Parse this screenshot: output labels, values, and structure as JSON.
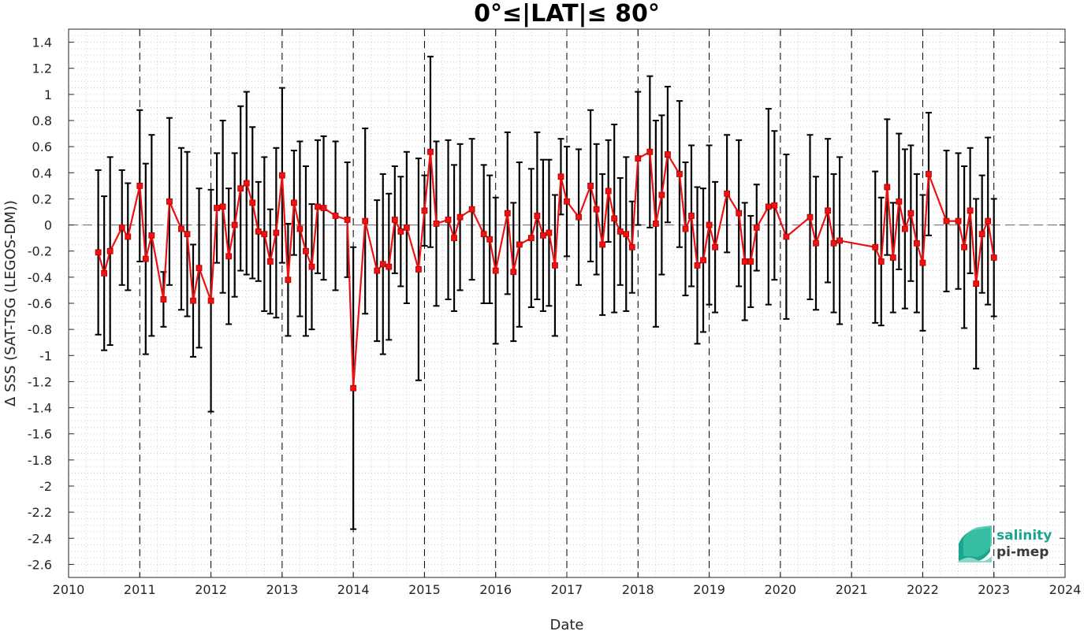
{
  "chart_data": {
    "type": "line",
    "title": "0°≤|LAT|≤ 80°",
    "xlabel": "Date",
    "ylabel": "Δ SSS (SAT-TSG (LEGOS-DM))",
    "xlim": [
      2010,
      2024
    ],
    "ylim": [
      -2.7,
      1.5
    ],
    "x_ticks": [
      "2010",
      "2011",
      "2012",
      "2013",
      "2014",
      "2015",
      "2016",
      "2017",
      "2018",
      "2019",
      "2020",
      "2021",
      "2022",
      "2023",
      "2024"
    ],
    "y_ticks": [
      "-2.6",
      "-2.4",
      "-2.2",
      "-2",
      "-1.8",
      "-1.6",
      "-1.4",
      "-1.2",
      "-1",
      "-0.8",
      "-0.6",
      "-0.4",
      "-0.2",
      "0",
      "0.2",
      "0.4",
      "0.6",
      "0.8",
      "1",
      "1.2",
      "1.4"
    ],
    "grid": true,
    "year_dashed_lines": true,
    "zero_line": true,
    "series": [
      {
        "color": "#ee1111",
        "errorbar_color": "#000000",
        "points": [
          {
            "x": "2010-06",
            "y": -0.21,
            "err": 0.63
          },
          {
            "x": "2010-07",
            "y": -0.37,
            "err": 0.59
          },
          {
            "x": "2010-08",
            "y": -0.2,
            "err": 0.72
          },
          {
            "x": "2010-10",
            "y": -0.02,
            "err": 0.44
          },
          {
            "x": "2010-11",
            "y": -0.09,
            "err": 0.41
          },
          {
            "x": "2011-01",
            "y": 0.3,
            "err": 0.58
          },
          {
            "x": "2011-02",
            "y": -0.26,
            "err": 0.73
          },
          {
            "x": "2011-03",
            "y": -0.08,
            "err": 0.77
          },
          {
            "x": "2011-05",
            "y": -0.57,
            "err": 0.21
          },
          {
            "x": "2011-06",
            "y": 0.18,
            "err": 0.64
          },
          {
            "x": "2011-08",
            "y": -0.03,
            "err": 0.62
          },
          {
            "x": "2011-09",
            "y": -0.07,
            "err": 0.63
          },
          {
            "x": "2011-10",
            "y": -0.58,
            "err": 0.43
          },
          {
            "x": "2011-11",
            "y": -0.33,
            "err": 0.61
          },
          {
            "x": "2012-01",
            "y": -0.58,
            "err": 0.85
          },
          {
            "x": "2012-02",
            "y": 0.13,
            "err": 0.42
          },
          {
            "x": "2012-03",
            "y": 0.14,
            "err": 0.66
          },
          {
            "x": "2012-04",
            "y": -0.24,
            "err": 0.52
          },
          {
            "x": "2012-05",
            "y": 0.0,
            "err": 0.55
          },
          {
            "x": "2012-06",
            "y": 0.28,
            "err": 0.63
          },
          {
            "x": "2012-07",
            "y": 0.32,
            "err": 0.7
          },
          {
            "x": "2012-08",
            "y": 0.17,
            "err": 0.58
          },
          {
            "x": "2012-09",
            "y": -0.05,
            "err": 0.38
          },
          {
            "x": "2012-10",
            "y": -0.07,
            "err": 0.59
          },
          {
            "x": "2012-11",
            "y": -0.28,
            "err": 0.4
          },
          {
            "x": "2012-12",
            "y": -0.06,
            "err": 0.65
          },
          {
            "x": "2013-01",
            "y": 0.38,
            "err": 0.67
          },
          {
            "x": "2013-02",
            "y": -0.42,
            "err": 0.43
          },
          {
            "x": "2013-03",
            "y": 0.17,
            "err": 0.4
          },
          {
            "x": "2013-04",
            "y": -0.03,
            "err": 0.67
          },
          {
            "x": "2013-05",
            "y": -0.2,
            "err": 0.65
          },
          {
            "x": "2013-06",
            "y": -0.32,
            "err": 0.48
          },
          {
            "x": "2013-07",
            "y": 0.14,
            "err": 0.51
          },
          {
            "x": "2013-08",
            "y": 0.13,
            "err": 0.55
          },
          {
            "x": "2013-10",
            "y": 0.07,
            "err": 0.57
          },
          {
            "x": "2013-12",
            "y": 0.04,
            "err": 0.44
          },
          {
            "x": "2014-01",
            "y": -1.25,
            "err": 1.08
          },
          {
            "x": "2014-03",
            "y": 0.03,
            "err": 0.71
          },
          {
            "x": "2014-05",
            "y": -0.35,
            "err": 0.54
          },
          {
            "x": "2014-06",
            "y": -0.3,
            "err": 0.69
          },
          {
            "x": "2014-07",
            "y": -0.32,
            "err": 0.56
          },
          {
            "x": "2014-08",
            "y": 0.04,
            "err": 0.41
          },
          {
            "x": "2014-09",
            "y": -0.05,
            "err": 0.42
          },
          {
            "x": "2014-10",
            "y": -0.02,
            "err": 0.58
          },
          {
            "x": "2014-12",
            "y": -0.34,
            "err": 0.85
          },
          {
            "x": "2015-01",
            "y": 0.11,
            "err": 0.27
          },
          {
            "x": "2015-02",
            "y": 0.56,
            "err": 0.73
          },
          {
            "x": "2015-03",
            "y": 0.01,
            "err": 0.63
          },
          {
            "x": "2015-05",
            "y": 0.04,
            "err": 0.61
          },
          {
            "x": "2015-06",
            "y": -0.1,
            "err": 0.56
          },
          {
            "x": "2015-07",
            "y": 0.06,
            "err": 0.56
          },
          {
            "x": "2015-09",
            "y": 0.12,
            "err": 0.54
          },
          {
            "x": "2015-11",
            "y": -0.07,
            "err": 0.53
          },
          {
            "x": "2015-12",
            "y": -0.11,
            "err": 0.49
          },
          {
            "x": "2016-01",
            "y": -0.35,
            "err": 0.56
          },
          {
            "x": "2016-03",
            "y": 0.09,
            "err": 0.62
          },
          {
            "x": "2016-04",
            "y": -0.36,
            "err": 0.53
          },
          {
            "x": "2016-05",
            "y": -0.15,
            "err": 0.63
          },
          {
            "x": "2016-07",
            "y": -0.1,
            "err": 0.53
          },
          {
            "x": "2016-08",
            "y": 0.07,
            "err": 0.64
          },
          {
            "x": "2016-09",
            "y": -0.08,
            "err": 0.58
          },
          {
            "x": "2016-10",
            "y": -0.06,
            "err": 0.56
          },
          {
            "x": "2016-11",
            "y": -0.31,
            "err": 0.54
          },
          {
            "x": "2016-12",
            "y": 0.37,
            "err": 0.29
          },
          {
            "x": "2017-01",
            "y": 0.18,
            "err": 0.42
          },
          {
            "x": "2017-03",
            "y": 0.06,
            "err": 0.52
          },
          {
            "x": "2017-05",
            "y": 0.3,
            "err": 0.58
          },
          {
            "x": "2017-06",
            "y": 0.12,
            "err": 0.5
          },
          {
            "x": "2017-07",
            "y": -0.15,
            "err": 0.54
          },
          {
            "x": "2017-08",
            "y": 0.26,
            "err": 0.39
          },
          {
            "x": "2017-09",
            "y": 0.05,
            "err": 0.72
          },
          {
            "x": "2017-10",
            "y": -0.05,
            "err": 0.41
          },
          {
            "x": "2017-11",
            "y": -0.07,
            "err": 0.59
          },
          {
            "x": "2017-12",
            "y": -0.17,
            "err": 0.35
          },
          {
            "x": "2018-01",
            "y": 0.51,
            "err": 0.51
          },
          {
            "x": "2018-03",
            "y": 0.56,
            "err": 0.58
          },
          {
            "x": "2018-04",
            "y": 0.01,
            "err": 0.79
          },
          {
            "x": "2018-05",
            "y": 0.23,
            "err": 0.61
          },
          {
            "x": "2018-06",
            "y": 0.54,
            "err": 0.52
          },
          {
            "x": "2018-08",
            "y": 0.39,
            "err": 0.56
          },
          {
            "x": "2018-09",
            "y": -0.03,
            "err": 0.51
          },
          {
            "x": "2018-10",
            "y": 0.07,
            "err": 0.54
          },
          {
            "x": "2018-11",
            "y": -0.31,
            "err": 0.6
          },
          {
            "x": "2018-12",
            "y": -0.27,
            "err": 0.55
          },
          {
            "x": "2019-01",
            "y": 0.0,
            "err": 0.61
          },
          {
            "x": "2019-02",
            "y": -0.17,
            "err": 0.5
          },
          {
            "x": "2019-04",
            "y": 0.24,
            "err": 0.45
          },
          {
            "x": "2019-06",
            "y": 0.09,
            "err": 0.56
          },
          {
            "x": "2019-07",
            "y": -0.28,
            "err": 0.45
          },
          {
            "x": "2019-08",
            "y": -0.28,
            "err": 0.35
          },
          {
            "x": "2019-09",
            "y": -0.02,
            "err": 0.33
          },
          {
            "x": "2019-11",
            "y": 0.14,
            "err": 0.75
          },
          {
            "x": "2019-12",
            "y": 0.15,
            "err": 0.57
          },
          {
            "x": "2020-02",
            "y": -0.09,
            "err": 0.63
          },
          {
            "x": "2020-06",
            "y": 0.06,
            "err": 0.63
          },
          {
            "x": "2020-07",
            "y": -0.14,
            "err": 0.51
          },
          {
            "x": "2020-09",
            "y": 0.11,
            "err": 0.55
          },
          {
            "x": "2020-10",
            "y": -0.14,
            "err": 0.53
          },
          {
            "x": "2020-11",
            "y": -0.12,
            "err": 0.64
          },
          {
            "x": "2021-05",
            "y": -0.17,
            "err": 0.58
          },
          {
            "x": "2021-06",
            "y": -0.28,
            "err": 0.49
          },
          {
            "x": "2021-07",
            "y": 0.29,
            "err": 0.52
          },
          {
            "x": "2021-08",
            "y": -0.25,
            "err": 0.42
          },
          {
            "x": "2021-09",
            "y": 0.18,
            "err": 0.52
          },
          {
            "x": "2021-10",
            "y": -0.03,
            "err": 0.61
          },
          {
            "x": "2021-11",
            "y": 0.09,
            "err": 0.52
          },
          {
            "x": "2021-12",
            "y": -0.14,
            "err": 0.53
          },
          {
            "x": "2022-01",
            "y": -0.29,
            "err": 0.52
          },
          {
            "x": "2022-02",
            "y": 0.39,
            "err": 0.47
          },
          {
            "x": "2022-05",
            "y": 0.03,
            "err": 0.54
          },
          {
            "x": "2022-07",
            "y": 0.03,
            "err": 0.52
          },
          {
            "x": "2022-08",
            "y": -0.17,
            "err": 0.62
          },
          {
            "x": "2022-09",
            "y": 0.11,
            "err": 0.48
          },
          {
            "x": "2022-10",
            "y": -0.45,
            "err": 0.65
          },
          {
            "x": "2022-11",
            "y": -0.07,
            "err": 0.45
          },
          {
            "x": "2022-12",
            "y": 0.03,
            "err": 0.64
          },
          {
            "x": "2023-01",
            "y": -0.25,
            "err": 0.45
          }
        ]
      }
    ]
  },
  "logo": {
    "line1": "salinity",
    "line2": "pi-mep"
  }
}
